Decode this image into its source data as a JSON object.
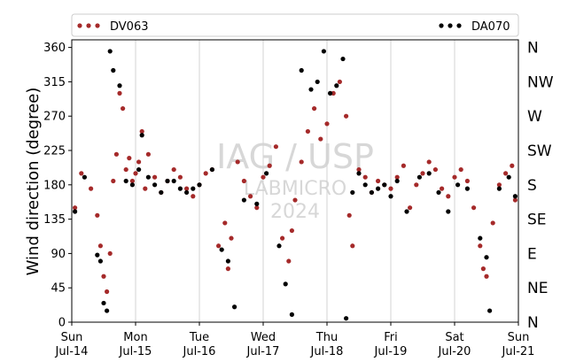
{
  "chart_data": {
    "type": "scatter",
    "title": "",
    "xlabel": "",
    "ylabel": "Wind direction (degree)",
    "ylim": [
      0,
      370
    ],
    "xlim": [
      0,
      7
    ],
    "yticks": [
      0,
      45,
      90,
      135,
      180,
      225,
      270,
      315,
      360
    ],
    "x_ticks": [
      {
        "day": "Sun",
        "date": "Jul-14"
      },
      {
        "day": "Mon",
        "date": "Jul-15"
      },
      {
        "day": "Tue",
        "date": "Jul-16"
      },
      {
        "day": "Wed",
        "date": "Jul-17"
      },
      {
        "day": "Thu",
        "date": "Jul-18"
      },
      {
        "day": "Fri",
        "date": "Jul-19"
      },
      {
        "day": "Sat",
        "date": "Jul-20"
      },
      {
        "day": "Sun",
        "date": "Jul-21"
      }
    ],
    "right_axis_labels": [
      "N",
      "NE",
      "E",
      "SE",
      "S",
      "SW",
      "W",
      "NW",
      "N"
    ],
    "grid": "vertical at day boundaries",
    "legend_placement": "top, above plot",
    "watermark": [
      "IAG / USP",
      "LABMICRO",
      "2024"
    ],
    "series": [
      {
        "name": "DV063",
        "color": "#a52a2a",
        "values": [
          [
            0.05,
            150
          ],
          [
            0.15,
            195
          ],
          [
            0.3,
            175
          ],
          [
            0.4,
            140
          ],
          [
            0.45,
            100
          ],
          [
            0.5,
            60
          ],
          [
            0.55,
            40
          ],
          [
            0.6,
            90
          ],
          [
            0.65,
            185
          ],
          [
            0.7,
            220
          ],
          [
            0.75,
            300
          ],
          [
            0.8,
            280
          ],
          [
            0.85,
            200
          ],
          [
            0.9,
            215
          ],
          [
            0.95,
            185
          ],
          [
            1.0,
            195
          ],
          [
            1.05,
            210
          ],
          [
            1.1,
            250
          ],
          [
            1.15,
            175
          ],
          [
            1.2,
            220
          ],
          [
            1.3,
            190
          ],
          [
            1.4,
            170
          ],
          [
            1.5,
            185
          ],
          [
            1.6,
            200
          ],
          [
            1.7,
            190
          ],
          [
            1.8,
            175
          ],
          [
            1.9,
            165
          ],
          [
            2.0,
            180
          ],
          [
            2.1,
            195
          ],
          [
            2.2,
            200
          ],
          [
            2.3,
            100
          ],
          [
            2.4,
            130
          ],
          [
            2.45,
            70
          ],
          [
            2.5,
            110
          ],
          [
            2.6,
            210
          ],
          [
            2.7,
            185
          ],
          [
            2.8,
            165
          ],
          [
            2.9,
            150
          ],
          [
            3.0,
            190
          ],
          [
            3.1,
            205
          ],
          [
            3.2,
            230
          ],
          [
            3.3,
            110
          ],
          [
            3.4,
            80
          ],
          [
            3.45,
            120
          ],
          [
            3.5,
            160
          ],
          [
            3.6,
            210
          ],
          [
            3.7,
            250
          ],
          [
            3.8,
            280
          ],
          [
            3.9,
            240
          ],
          [
            4.0,
            260
          ],
          [
            4.1,
            300
          ],
          [
            4.2,
            315
          ],
          [
            4.3,
            270
          ],
          [
            4.35,
            140
          ],
          [
            4.4,
            100
          ],
          [
            4.5,
            200
          ],
          [
            4.6,
            190
          ],
          [
            4.7,
            170
          ],
          [
            4.8,
            185
          ],
          [
            4.9,
            180
          ],
          [
            5.0,
            175
          ],
          [
            5.1,
            190
          ],
          [
            5.2,
            205
          ],
          [
            5.3,
            150
          ],
          [
            5.4,
            180
          ],
          [
            5.5,
            195
          ],
          [
            5.6,
            210
          ],
          [
            5.7,
            200
          ],
          [
            5.8,
            175
          ],
          [
            5.9,
            165
          ],
          [
            6.0,
            190
          ],
          [
            6.1,
            200
          ],
          [
            6.2,
            185
          ],
          [
            6.3,
            150
          ],
          [
            6.4,
            100
          ],
          [
            6.45,
            70
          ],
          [
            6.5,
            60
          ],
          [
            6.6,
            130
          ],
          [
            6.7,
            180
          ],
          [
            6.8,
            195
          ],
          [
            6.9,
            205
          ],
          [
            6.95,
            160
          ]
        ]
      },
      {
        "name": "DA070",
        "color": "#000000",
        "values": [
          [
            0.05,
            145
          ],
          [
            0.2,
            190
          ],
          [
            0.4,
            88
          ],
          [
            0.45,
            80
          ],
          [
            0.5,
            25
          ],
          [
            0.55,
            15
          ],
          [
            0.6,
            355
          ],
          [
            0.65,
            330
          ],
          [
            0.75,
            310
          ],
          [
            0.85,
            185
          ],
          [
            0.95,
            180
          ],
          [
            1.05,
            200
          ],
          [
            1.1,
            245
          ],
          [
            1.2,
            190
          ],
          [
            1.3,
            180
          ],
          [
            1.4,
            170
          ],
          [
            1.5,
            185
          ],
          [
            1.6,
            185
          ],
          [
            1.7,
            175
          ],
          [
            1.8,
            170
          ],
          [
            1.9,
            175
          ],
          [
            2.0,
            180
          ],
          [
            2.2,
            200
          ],
          [
            2.35,
            95
          ],
          [
            2.45,
            80
          ],
          [
            2.55,
            20
          ],
          [
            2.7,
            160
          ],
          [
            2.9,
            155
          ],
          [
            3.05,
            195
          ],
          [
            3.25,
            100
          ],
          [
            3.35,
            50
          ],
          [
            3.45,
            10
          ],
          [
            3.6,
            330
          ],
          [
            3.75,
            305
          ],
          [
            3.85,
            315
          ],
          [
            3.95,
            355
          ],
          [
            4.05,
            300
          ],
          [
            4.15,
            310
          ],
          [
            4.25,
            345
          ],
          [
            4.3,
            5
          ],
          [
            4.4,
            170
          ],
          [
            4.5,
            195
          ],
          [
            4.6,
            180
          ],
          [
            4.7,
            170
          ],
          [
            4.8,
            175
          ],
          [
            4.9,
            180
          ],
          [
            5.0,
            165
          ],
          [
            5.1,
            185
          ],
          [
            5.25,
            145
          ],
          [
            5.45,
            190
          ],
          [
            5.6,
            195
          ],
          [
            5.75,
            170
          ],
          [
            5.9,
            145
          ],
          [
            6.05,
            180
          ],
          [
            6.2,
            175
          ],
          [
            6.4,
            110
          ],
          [
            6.5,
            85
          ],
          [
            6.55,
            15
          ],
          [
            6.7,
            175
          ],
          [
            6.85,
            190
          ],
          [
            6.95,
            165
          ]
        ]
      }
    ]
  }
}
